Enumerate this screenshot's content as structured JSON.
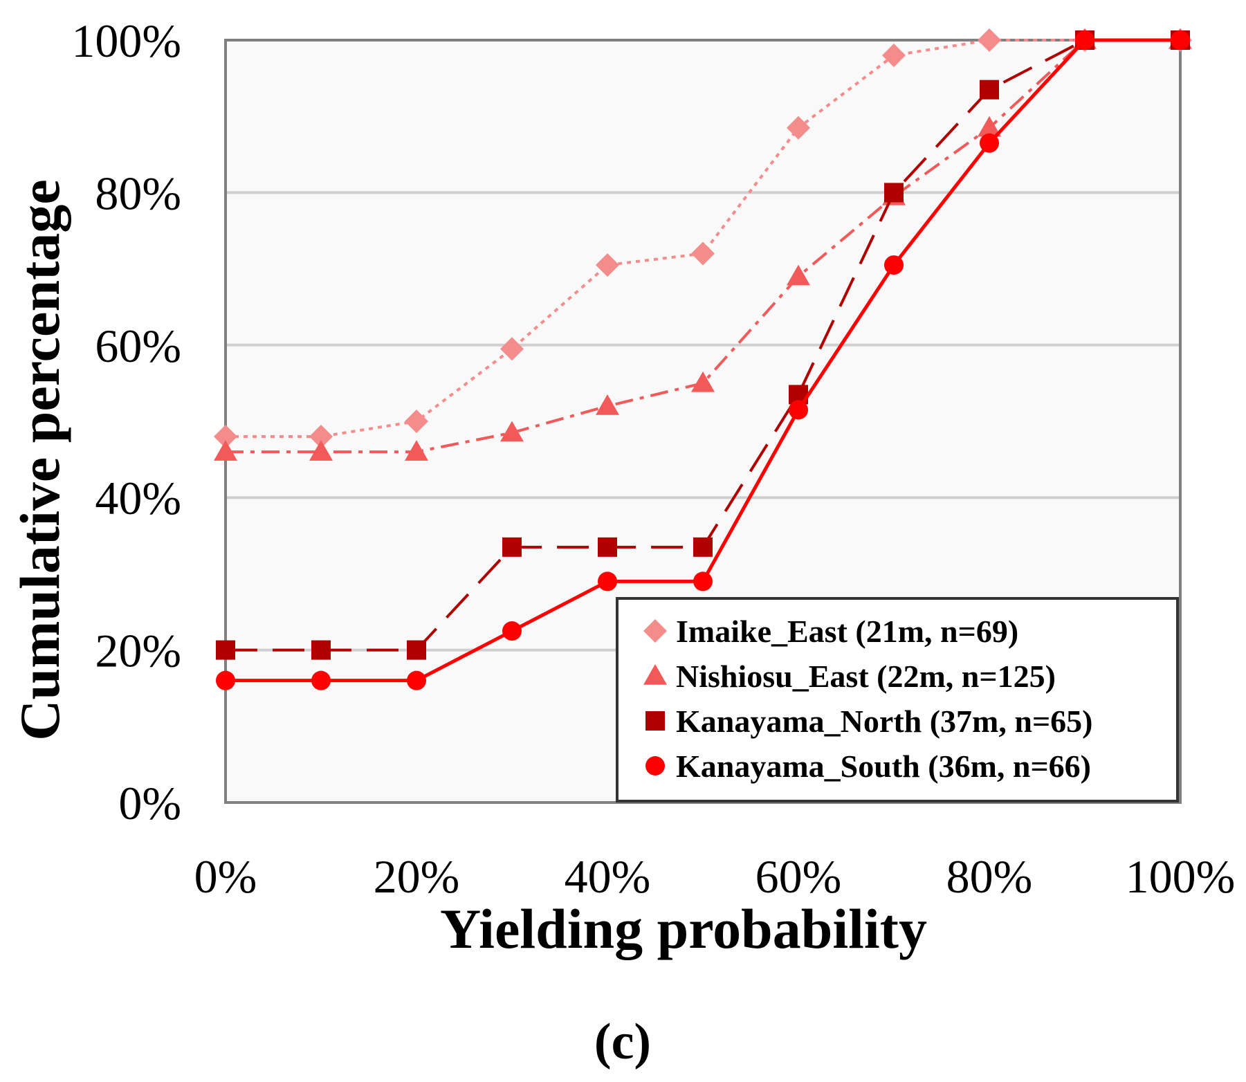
{
  "chart_data": {
    "type": "line",
    "xlabel": "Yielding probability",
    "ylabel": "Cumulative percentage",
    "panel_label": "(c)",
    "x": [
      0,
      10,
      20,
      30,
      40,
      50,
      60,
      70,
      80,
      90,
      100
    ],
    "xlim": [
      0,
      100
    ],
    "ylim": [
      0,
      100
    ],
    "x_ticks": [
      0,
      20,
      40,
      60,
      80,
      100
    ],
    "x_tick_labels": [
      "0%",
      "20%",
      "40%",
      "60%",
      "80%",
      "100%"
    ],
    "y_ticks": [
      0,
      20,
      40,
      60,
      80,
      100
    ],
    "y_tick_labels": [
      "0%",
      "20%",
      "40%",
      "60%",
      "80%",
      "100%"
    ],
    "grid": "horizontal",
    "plot_background": "#f9f9f9",
    "legend_position": "bottom-right",
    "series": [
      {
        "name": "Imaike_East (21m, n=69)",
        "values": [
          48,
          48,
          50,
          59.5,
          70.5,
          72,
          88.5,
          98,
          100,
          100,
          100
        ],
        "color": "#f58c8c",
        "marker": "diamond",
        "line_style": "dotted"
      },
      {
        "name": "Nishiosu_East (22m, n=125)",
        "values": [
          46,
          46,
          46,
          48.5,
          52,
          55,
          69,
          79.5,
          88.5,
          100,
          100
        ],
        "color": "#f25a5a",
        "marker": "triangle",
        "line_style": "dash-dot"
      },
      {
        "name": "Kanayama_North (37m, n=65)",
        "values": [
          20,
          20,
          20,
          33.5,
          33.5,
          33.5,
          53.5,
          80,
          93.5,
          100,
          100
        ],
        "color": "#b00000",
        "marker": "square",
        "line_style": "dashed"
      },
      {
        "name": "Kanayama_South (36m, n=66)",
        "values": [
          16,
          16,
          16,
          22.5,
          29,
          29,
          51.5,
          70.5,
          86.5,
          100,
          100
        ],
        "color": "#ff0000",
        "marker": "circle",
        "line_style": "solid"
      }
    ]
  }
}
